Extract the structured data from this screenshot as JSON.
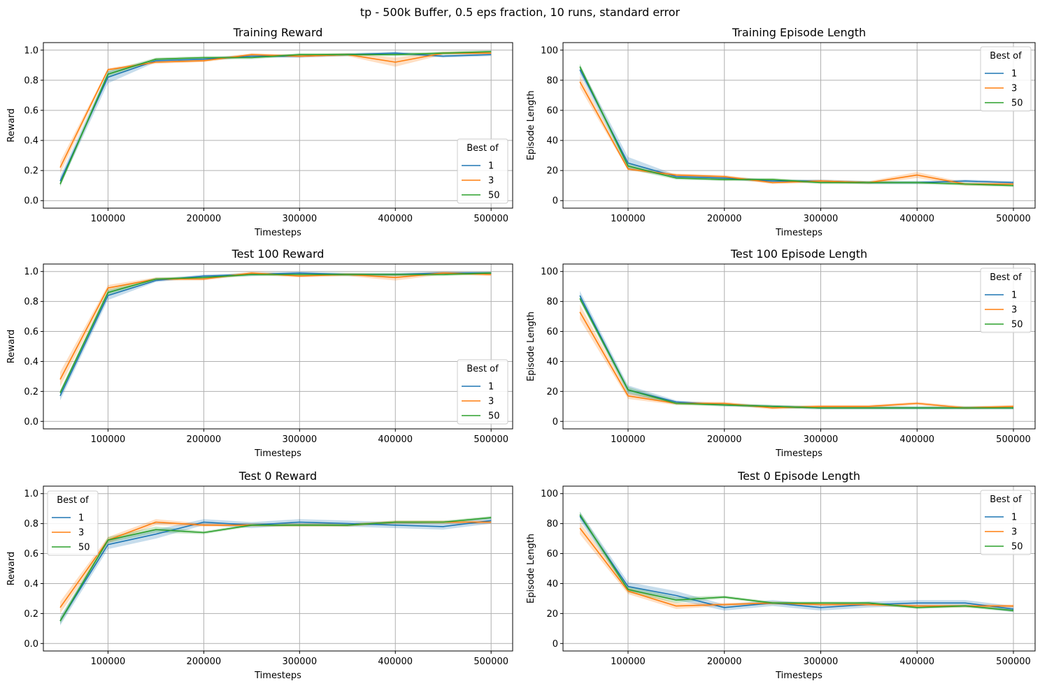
{
  "suptitle": "tp - 500k Buffer, 0.5 eps fraction, 10 runs, standard error",
  "colors": {
    "1": "#1f77b4",
    "3": "#ff7f0e",
    "50": "#2ca02c",
    "grid": "#b0b0b0"
  },
  "chart_data": [
    {
      "type": "line",
      "title": "Training Reward",
      "xlabel": "Timesteps",
      "ylabel": "Reward",
      "xlim": [
        32500,
        522500
      ],
      "ylim": [
        -0.05,
        1.05
      ],
      "xticks": [
        100000,
        200000,
        300000,
        400000,
        500000
      ],
      "yticks": [
        0.0,
        0.2,
        0.4,
        0.6,
        0.8,
        1.0
      ],
      "ytick_labels": [
        "0.0",
        "0.2",
        "0.4",
        "0.6",
        "0.8",
        "1.0"
      ],
      "grid": true,
      "legend": {
        "title": "Best of",
        "loc": "lower-right"
      },
      "x": [
        50000,
        100000,
        150000,
        200000,
        250000,
        300000,
        350000,
        400000,
        450000,
        500000
      ],
      "series": [
        {
          "name": "1",
          "values": [
            0.13,
            0.82,
            0.93,
            0.94,
            0.96,
            0.96,
            0.97,
            0.98,
            0.96,
            0.97
          ],
          "se": [
            0.03,
            0.04,
            0.01,
            0.01,
            0.01,
            0.01,
            0.01,
            0.01,
            0.01,
            0.01
          ]
        },
        {
          "name": "3",
          "values": [
            0.22,
            0.87,
            0.92,
            0.93,
            0.97,
            0.96,
            0.97,
            0.92,
            0.98,
            0.98
          ],
          "se": [
            0.04,
            0.01,
            0.01,
            0.01,
            0.01,
            0.01,
            0.01,
            0.03,
            0.01,
            0.01
          ]
        },
        {
          "name": "50",
          "values": [
            0.11,
            0.84,
            0.94,
            0.95,
            0.95,
            0.97,
            0.97,
            0.97,
            0.98,
            0.99
          ],
          "se": [
            0.02,
            0.02,
            0.01,
            0.01,
            0.01,
            0.01,
            0.01,
            0.01,
            0.01,
            0.01
          ]
        }
      ]
    },
    {
      "type": "line",
      "title": "Training Episode Length",
      "xlabel": "Timesteps",
      "ylabel": "Episode Length",
      "xlim": [
        32500,
        522500
      ],
      "ylim": [
        -5,
        105
      ],
      "xticks": [
        100000,
        200000,
        300000,
        400000,
        500000
      ],
      "yticks": [
        0,
        20,
        40,
        60,
        80,
        100
      ],
      "ytick_labels": [
        "0",
        "20",
        "40",
        "60",
        "80",
        "100"
      ],
      "grid": true,
      "legend": {
        "title": "Best of",
        "loc": "upper-right"
      },
      "x": [
        50000,
        100000,
        150000,
        200000,
        250000,
        300000,
        350000,
        400000,
        450000,
        500000
      ],
      "series": [
        {
          "name": "1",
          "values": [
            87,
            25,
            16,
            15,
            13,
            13,
            12,
            12,
            13,
            12
          ],
          "se": [
            3,
            4,
            1,
            1,
            1,
            1,
            1,
            1,
            1,
            1
          ]
        },
        {
          "name": "3",
          "values": [
            79,
            21,
            17,
            16,
            12,
            13,
            12,
            17,
            11,
            11
          ],
          "se": [
            4,
            1,
            1,
            1,
            1,
            1,
            1,
            2,
            1,
            1
          ]
        },
        {
          "name": "50",
          "values": [
            89,
            23,
            15,
            14,
            14,
            12,
            12,
            12,
            11,
            10
          ],
          "se": [
            2,
            2,
            1,
            1,
            1,
            1,
            1,
            1,
            1,
            1
          ]
        }
      ]
    },
    {
      "type": "line",
      "title": "Test 100 Reward",
      "xlabel": "Timesteps",
      "ylabel": "Reward",
      "xlim": [
        32500,
        522500
      ],
      "ylim": [
        -0.05,
        1.05
      ],
      "xticks": [
        100000,
        200000,
        300000,
        400000,
        500000
      ],
      "yticks": [
        0.0,
        0.2,
        0.4,
        0.6,
        0.8,
        1.0
      ],
      "ytick_labels": [
        "0.0",
        "0.2",
        "0.4",
        "0.6",
        "0.8",
        "1.0"
      ],
      "grid": true,
      "legend": {
        "title": "Best of",
        "loc": "lower-right"
      },
      "x": [
        50000,
        100000,
        150000,
        200000,
        250000,
        300000,
        350000,
        400000,
        450000,
        500000
      ],
      "series": [
        {
          "name": "1",
          "values": [
            0.17,
            0.84,
            0.94,
            0.97,
            0.98,
            0.99,
            0.98,
            0.98,
            0.99,
            0.99
          ],
          "se": [
            0.03,
            0.03,
            0.01,
            0.01,
            0.01,
            0.01,
            0.01,
            0.01,
            0.01,
            0.01
          ]
        },
        {
          "name": "3",
          "values": [
            0.28,
            0.89,
            0.95,
            0.95,
            0.99,
            0.97,
            0.98,
            0.96,
            0.99,
            0.98
          ],
          "se": [
            0.05,
            0.02,
            0.01,
            0.01,
            0.01,
            0.01,
            0.01,
            0.02,
            0.01,
            0.01
          ]
        },
        {
          "name": "50",
          "values": [
            0.19,
            0.86,
            0.95,
            0.96,
            0.98,
            0.98,
            0.98,
            0.98,
            0.98,
            0.99
          ],
          "se": [
            0.02,
            0.02,
            0.01,
            0.01,
            0.01,
            0.01,
            0.01,
            0.01,
            0.01,
            0.01
          ]
        }
      ]
    },
    {
      "type": "line",
      "title": "Test 100 Episode Length",
      "xlabel": "Timesteps",
      "ylabel": "Episode Length",
      "xlim": [
        32500,
        522500
      ],
      "ylim": [
        -5,
        105
      ],
      "xticks": [
        100000,
        200000,
        300000,
        400000,
        500000
      ],
      "yticks": [
        0,
        20,
        40,
        60,
        80,
        100
      ],
      "ytick_labels": [
        "0",
        "20",
        "40",
        "60",
        "80",
        "100"
      ],
      "grid": true,
      "legend": {
        "title": "Best of",
        "loc": "upper-right"
      },
      "x": [
        50000,
        100000,
        150000,
        200000,
        250000,
        300000,
        350000,
        400000,
        450000,
        500000
      ],
      "series": [
        {
          "name": "1",
          "values": [
            84,
            21,
            13,
            11,
            10,
            9,
            9,
            9,
            9,
            9
          ],
          "se": [
            3,
            3,
            1,
            1,
            1,
            1,
            1,
            1,
            1,
            1
          ]
        },
        {
          "name": "3",
          "values": [
            73,
            17,
            12,
            12,
            9,
            10,
            10,
            12,
            9,
            10
          ],
          "se": [
            5,
            2,
            1,
            1,
            1,
            1,
            1,
            1,
            1,
            1
          ]
        },
        {
          "name": "50",
          "values": [
            82,
            21,
            12,
            11,
            10,
            9,
            9,
            9,
            9,
            9
          ],
          "se": [
            2,
            2,
            1,
            1,
            1,
            1,
            1,
            1,
            1,
            1
          ]
        }
      ]
    },
    {
      "type": "line",
      "title": "Test 0 Reward",
      "xlabel": "Timesteps",
      "ylabel": "Reward",
      "xlim": [
        32500,
        522500
      ],
      "ylim": [
        -0.05,
        1.05
      ],
      "xticks": [
        100000,
        200000,
        300000,
        400000,
        500000
      ],
      "yticks": [
        0.0,
        0.2,
        0.4,
        0.6,
        0.8,
        1.0
      ],
      "ytick_labels": [
        "0.0",
        "0.2",
        "0.4",
        "0.6",
        "0.8",
        "1.0"
      ],
      "grid": true,
      "legend": {
        "title": "Best of",
        "loc": "upper-left"
      },
      "x": [
        50000,
        100000,
        150000,
        200000,
        250000,
        300000,
        350000,
        400000,
        450000,
        500000
      ],
      "series": [
        {
          "name": "1",
          "values": [
            0.15,
            0.66,
            0.73,
            0.81,
            0.79,
            0.81,
            0.8,
            0.79,
            0.78,
            0.82
          ],
          "se": [
            0.03,
            0.03,
            0.03,
            0.02,
            0.02,
            0.02,
            0.02,
            0.02,
            0.02,
            0.02
          ]
        },
        {
          "name": "3",
          "values": [
            0.24,
            0.69,
            0.81,
            0.79,
            0.79,
            0.79,
            0.79,
            0.81,
            0.81,
            0.81
          ],
          "se": [
            0.04,
            0.02,
            0.02,
            0.01,
            0.01,
            0.01,
            0.01,
            0.01,
            0.01,
            0.01
          ]
        },
        {
          "name": "50",
          "values": [
            0.15,
            0.69,
            0.76,
            0.74,
            0.79,
            0.79,
            0.79,
            0.81,
            0.81,
            0.84
          ],
          "se": [
            0.02,
            0.02,
            0.02,
            0.01,
            0.01,
            0.01,
            0.01,
            0.01,
            0.01,
            0.01
          ]
        }
      ]
    },
    {
      "type": "line",
      "title": "Test 0 Episode Length",
      "xlabel": "Timesteps",
      "ylabel": "Episode Length",
      "xlim": [
        32500,
        522500
      ],
      "ylim": [
        -5,
        105
      ],
      "xticks": [
        100000,
        200000,
        300000,
        400000,
        500000
      ],
      "yticks": [
        0,
        20,
        40,
        60,
        80,
        100
      ],
      "ytick_labels": [
        "0",
        "20",
        "40",
        "60",
        "80",
        "100"
      ],
      "grid": true,
      "legend": {
        "title": "Best of",
        "loc": "upper-right"
      },
      "x": [
        50000,
        100000,
        150000,
        200000,
        250000,
        300000,
        350000,
        400000,
        450000,
        500000
      ],
      "series": [
        {
          "name": "1",
          "values": [
            85,
            38,
            32,
            24,
            27,
            24,
            26,
            27,
            27,
            23
          ],
          "se": [
            3,
            3,
            3,
            2,
            2,
            2,
            2,
            2,
            2,
            2
          ]
        },
        {
          "name": "3",
          "values": [
            77,
            35,
            25,
            26,
            27,
            26,
            26,
            25,
            25,
            25
          ],
          "se": [
            4,
            2,
            2,
            1,
            1,
            1,
            1,
            1,
            1,
            1
          ]
        },
        {
          "name": "50",
          "values": [
            86,
            36,
            29,
            31,
            27,
            27,
            27,
            24,
            25,
            22
          ],
          "se": [
            2,
            2,
            2,
            1,
            1,
            1,
            1,
            1,
            1,
            1
          ]
        }
      ]
    }
  ]
}
